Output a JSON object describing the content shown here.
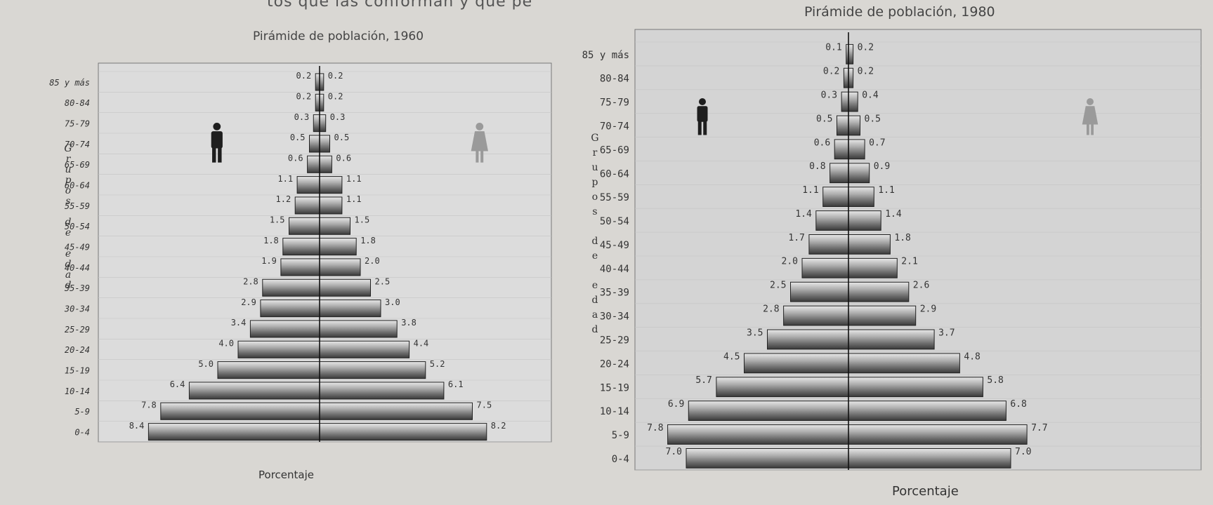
{
  "page_top_text": "tos que las conforman y que pe",
  "chart_data": [
    {
      "type": "bar",
      "subtype": "population-pyramid",
      "title": "Pirámide de población, 1960",
      "xlabel": "Porcentaje",
      "ylabel": "Grupos de edad",
      "categories": [
        "85 y más",
        "80-84",
        "75-79",
        "70-74",
        "65-69",
        "60-64",
        "55-59",
        "50-54",
        "45-49",
        "40-44",
        "35-39",
        "30-34",
        "25-29",
        "20-24",
        "15-19",
        "10-14",
        "5-9",
        "0-4"
      ],
      "series": [
        {
          "side": "left",
          "values": [
            0.2,
            0.2,
            0.3,
            0.5,
            0.6,
            1.1,
            1.2,
            1.5,
            1.8,
            1.9,
            2.8,
            2.9,
            3.4,
            4.0,
            5.0,
            6.4,
            7.8,
            8.4
          ]
        },
        {
          "side": "right",
          "values": [
            0.2,
            0.2,
            0.3,
            0.5,
            0.6,
            1.1,
            1.1,
            1.5,
            1.8,
            2.0,
            2.5,
            3.0,
            3.8,
            4.4,
            5.2,
            6.1,
            7.5,
            8.2
          ]
        }
      ],
      "value_labels_left": [
        "0.2",
        "0.2",
        "0.3",
        "0.5",
        "0.6",
        "1.1",
        "1.2",
        "1.5",
        "1.8",
        "1.9",
        "2.8",
        "2.9",
        "3.4",
        "4.0",
        "5.0",
        "6.4",
        "7.8",
        "8.4"
      ],
      "value_labels_right": [
        "0.2",
        "0.2",
        "0.3",
        "0.5",
        "0.6",
        "1.1",
        "1.1",
        "1.5",
        "1.8",
        "2.0",
        "2.5",
        "3.0",
        "3.8",
        "4.4",
        "5.2",
        "6.1",
        "7.5",
        "8.2"
      ],
      "icons": [
        "male-figure-icon",
        "female-figure-icon"
      ],
      "colors": {
        "background": "#dcdcdc",
        "bar": "#8c8c8c",
        "male_icon": "#1e1e1e",
        "female_icon": "#9a9a9a"
      }
    },
    {
      "type": "bar",
      "subtype": "population-pyramid",
      "title": "Pirámide de población, 1980",
      "xlabel": "Porcentaje",
      "ylabel": "Grupos de edad",
      "categories": [
        "85 y más",
        "80-84",
        "75-79",
        "70-74",
        "65-69",
        "60-64",
        "55-59",
        "50-54",
        "45-49",
        "40-44",
        "35-39",
        "30-34",
        "25-29",
        "20-24",
        "15-19",
        "10-14",
        "5-9",
        "0-4"
      ],
      "series": [
        {
          "side": "left",
          "values": [
            0.1,
            0.2,
            0.3,
            0.5,
            0.6,
            0.8,
            1.1,
            1.4,
            1.7,
            2.0,
            2.5,
            2.8,
            3.5,
            4.5,
            5.7,
            6.9,
            7.8,
            7.0
          ]
        },
        {
          "side": "right",
          "values": [
            0.2,
            0.2,
            0.4,
            0.5,
            0.7,
            0.9,
            1.1,
            1.4,
            1.8,
            2.1,
            2.6,
            2.9,
            3.7,
            4.8,
            5.8,
            6.8,
            7.7,
            7.0
          ]
        }
      ],
      "value_labels_left": [
        "0.1",
        "0.2",
        "0.3",
        "0.5",
        "0.6",
        "0.8",
        "1.1",
        "1.4",
        "1.7",
        "2.0",
        "2.5",
        "2.8",
        "3.5",
        "4.5",
        "5.7",
        "6.9",
        "7.8",
        "7.0"
      ],
      "value_labels_right": [
        "0.2",
        "0.2",
        "0.4",
        "0.5",
        "0.7",
        "0.9",
        "1.1",
        "1.4",
        "1.8",
        "2.1",
        "2.6",
        "2.9",
        "3.7",
        "4.8",
        "5.8",
        "6.8",
        "7.7",
        "7.0"
      ],
      "icons": [
        "male-figure-icon",
        "female-figure-icon"
      ],
      "colors": {
        "background": "#d4d4d4",
        "bar": "#8c8c8c",
        "male_icon": "#1e1e1e",
        "female_icon": "#9a9a9a"
      }
    }
  ]
}
